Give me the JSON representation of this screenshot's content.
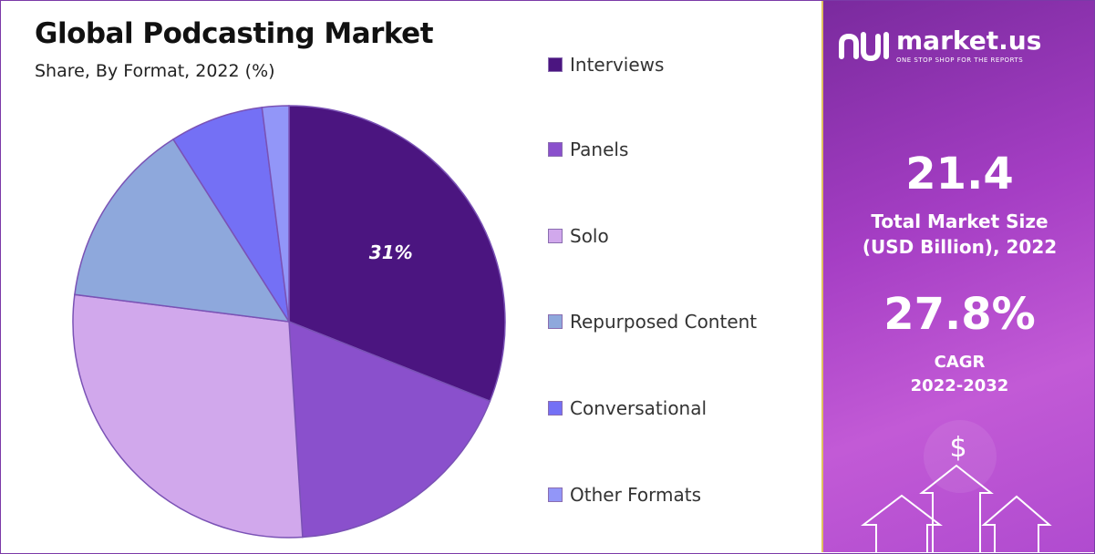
{
  "header": {
    "title": "Global Podcasting Market",
    "subtitle": "Share, By Format, 2022 (%)"
  },
  "chart_data": {
    "type": "pie",
    "title": "Global Podcasting Market",
    "subtitle": "Share, By Format, 2022 (%)",
    "categories": [
      "Interviews",
      "Panels",
      "Solo",
      "Repurposed Content",
      "Conversational",
      "Other Formats"
    ],
    "values": [
      31,
      18,
      28,
      14,
      7,
      2
    ],
    "colors": [
      "#4b1580",
      "#8a50cc",
      "#d1a8ec",
      "#8ea8dc",
      "#7470f5",
      "#9296f8"
    ],
    "data_labels": [
      "31%",
      "",
      "",
      "",
      "",
      ""
    ],
    "legend_position": "right"
  },
  "legend": {
    "items": [
      {
        "label": "Interviews",
        "color": "#4b1580"
      },
      {
        "label": "Panels",
        "color": "#8a50cc"
      },
      {
        "label": "Solo",
        "color": "#d1a8ec"
      },
      {
        "label": "Repurposed Content",
        "color": "#8ea8dc"
      },
      {
        "label": "Conversational",
        "color": "#7470f5"
      },
      {
        "label": "Other Formats",
        "color": "#9296f8"
      }
    ]
  },
  "sidebar": {
    "brand": "market.us",
    "tagline": "ONE STOP SHOP FOR THE REPORTS",
    "market_size_value": "21.4",
    "market_size_label_1": "Total Market Size",
    "market_size_label_2": "(USD Billion), 2022",
    "cagr_value": "27.8%",
    "cagr_label_1": "CAGR",
    "cagr_label_2": "2022-2032",
    "dollar_symbol": "$"
  }
}
